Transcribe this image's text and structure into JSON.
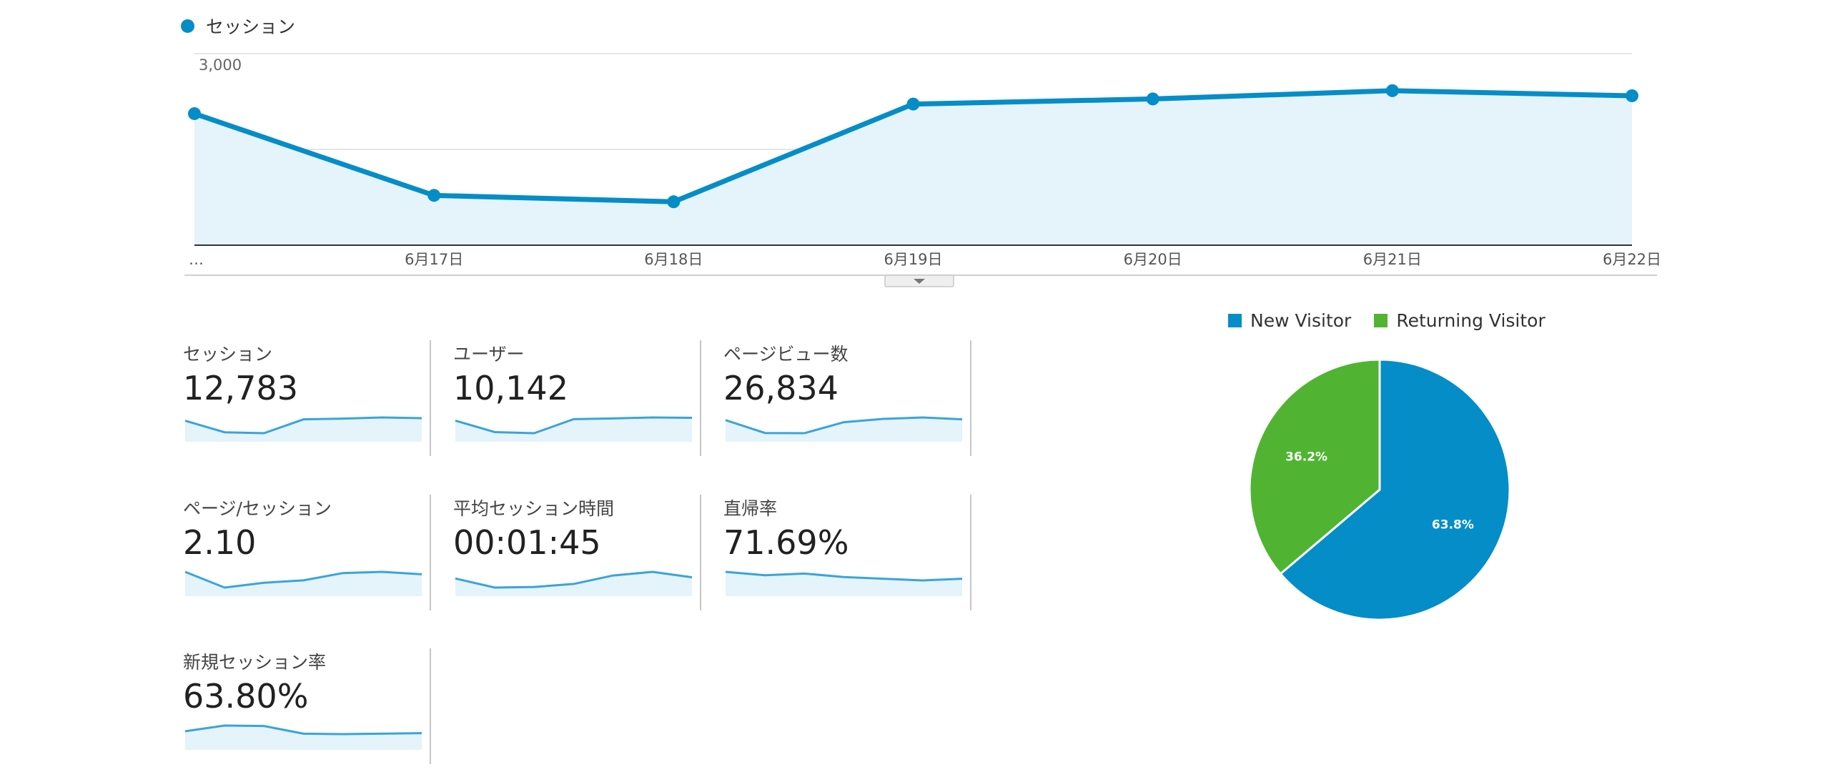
{
  "main_chart": {
    "legend_label": "セッション",
    "color": "#058DC7",
    "fill": "#E5F3FA",
    "chart_data": {
      "type": "area",
      "x": [
        "…",
        "6月17日",
        "6月18日",
        "6月19日",
        "6月20日",
        "6月21日",
        "6月22日"
      ],
      "series": [
        {
          "name": "セッション",
          "values": [
            2060,
            780,
            680,
            2210,
            2290,
            2420,
            2340
          ]
        }
      ],
      "ylim": [
        0,
        3000
      ],
      "yticks": [
        "3,000",
        "1,500"
      ],
      "grid": true
    }
  },
  "cards": [
    {
      "label": "セッション",
      "value": "12,783",
      "spark": [
        2060,
        780,
        680,
        2210,
        2290,
        2420,
        2340
      ]
    },
    {
      "label": "ユーザー",
      "value": "10,142",
      "spark": [
        1600,
        650,
        560,
        1720,
        1780,
        1860,
        1830
      ]
    },
    {
      "label": "ページビュー数",
      "value": "26,834",
      "spark": [
        4400,
        1250,
        1200,
        3900,
        4700,
        5050,
        4600
      ]
    },
    {
      "label": "ページ/セッション",
      "value": "2.10",
      "spark": [
        2.18,
        2.05,
        2.09,
        2.11,
        2.17,
        2.18,
        2.16
      ]
    },
    {
      "label": "平均セッション時間",
      "value": "00:01:45",
      "spark": [
        110,
        95,
        96,
        101,
        115,
        121,
        112
      ]
    },
    {
      "label": "直帰率",
      "value": "71.69%",
      "spark": [
        71.9,
        71.7,
        71.8,
        71.6,
        71.5,
        71.4,
        71.5
      ]
    },
    {
      "label": "新規セッション率",
      "value": "63.80%",
      "spark": [
        64.2,
        65.4,
        65.3,
        63.7,
        63.6,
        63.7,
        63.8
      ]
    }
  ],
  "pie": {
    "chart_data": {
      "type": "pie",
      "categories": [
        "New Visitor",
        "Returning Visitor"
      ],
      "values": [
        63.8,
        36.2
      ],
      "labels": [
        "63.8%",
        "36.2%"
      ],
      "colors": [
        "#058DC7",
        "#50B432"
      ]
    }
  }
}
